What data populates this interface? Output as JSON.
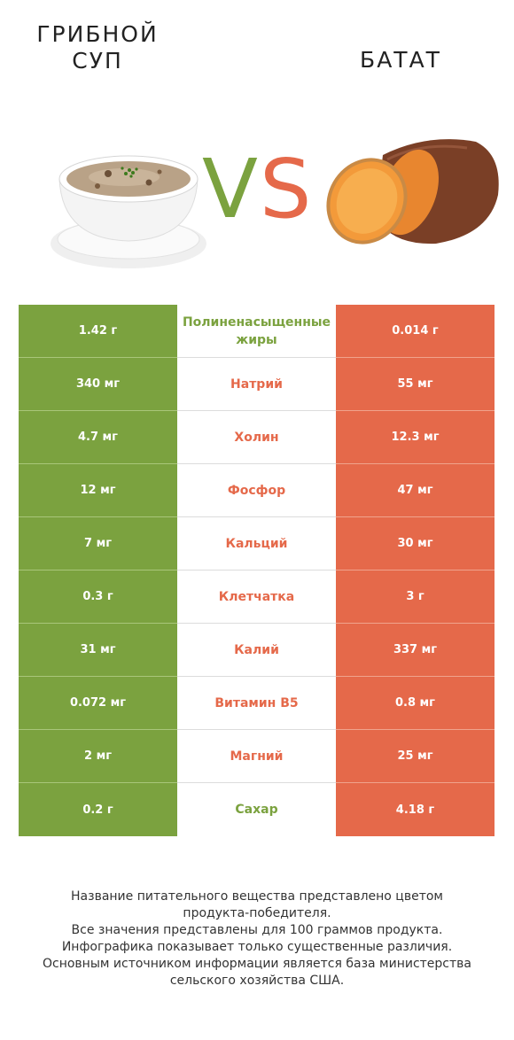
{
  "header": {
    "left_title": "ГРИБНОЙ\nСУП",
    "right_title": "БАТАТ",
    "vs_v": "V",
    "vs_s": "S"
  },
  "images": {
    "left": "mushroom-soup-bowl",
    "right": "sweet-potato"
  },
  "colors": {
    "left_winner": "#7ba23f",
    "right_winner": "#e5694a"
  },
  "rows": [
    {
      "left": "1.42 г",
      "nutrient": "Полиненасыщенные\nжиры",
      "right": "0.014 г",
      "winner": "left"
    },
    {
      "left": "340 мг",
      "nutrient": "Натрий",
      "right": "55 мг",
      "winner": "right"
    },
    {
      "left": "4.7 мг",
      "nutrient": "Холин",
      "right": "12.3 мг",
      "winner": "right"
    },
    {
      "left": "12 мг",
      "nutrient": "Фосфор",
      "right": "47 мг",
      "winner": "right"
    },
    {
      "left": "7 мг",
      "nutrient": "Кальций",
      "right": "30 мг",
      "winner": "right"
    },
    {
      "left": "0.3 г",
      "nutrient": "Клетчатка",
      "right": "3 г",
      "winner": "right"
    },
    {
      "left": "31 мг",
      "nutrient": "Калий",
      "right": "337 мг",
      "winner": "right"
    },
    {
      "left": "0.072 мг",
      "nutrient": "Витамин B5",
      "right": "0.8 мг",
      "winner": "right"
    },
    {
      "left": "2 мг",
      "nutrient": "Магний",
      "right": "25 мг",
      "winner": "right"
    },
    {
      "left": "0.2 г",
      "nutrient": "Сахар",
      "right": "4.18 г",
      "winner": "left"
    }
  ],
  "footer": {
    "line1": "Название питательного вещества представлено цветом",
    "line2": "продукта-победителя.",
    "line3": "Все значения представлены для 100 граммов продукта.",
    "line4": "Инфографика показывает только существенные различия.",
    "line5": "Основным источником информации является база министерства",
    "line6": "сельского хозяйства США."
  }
}
